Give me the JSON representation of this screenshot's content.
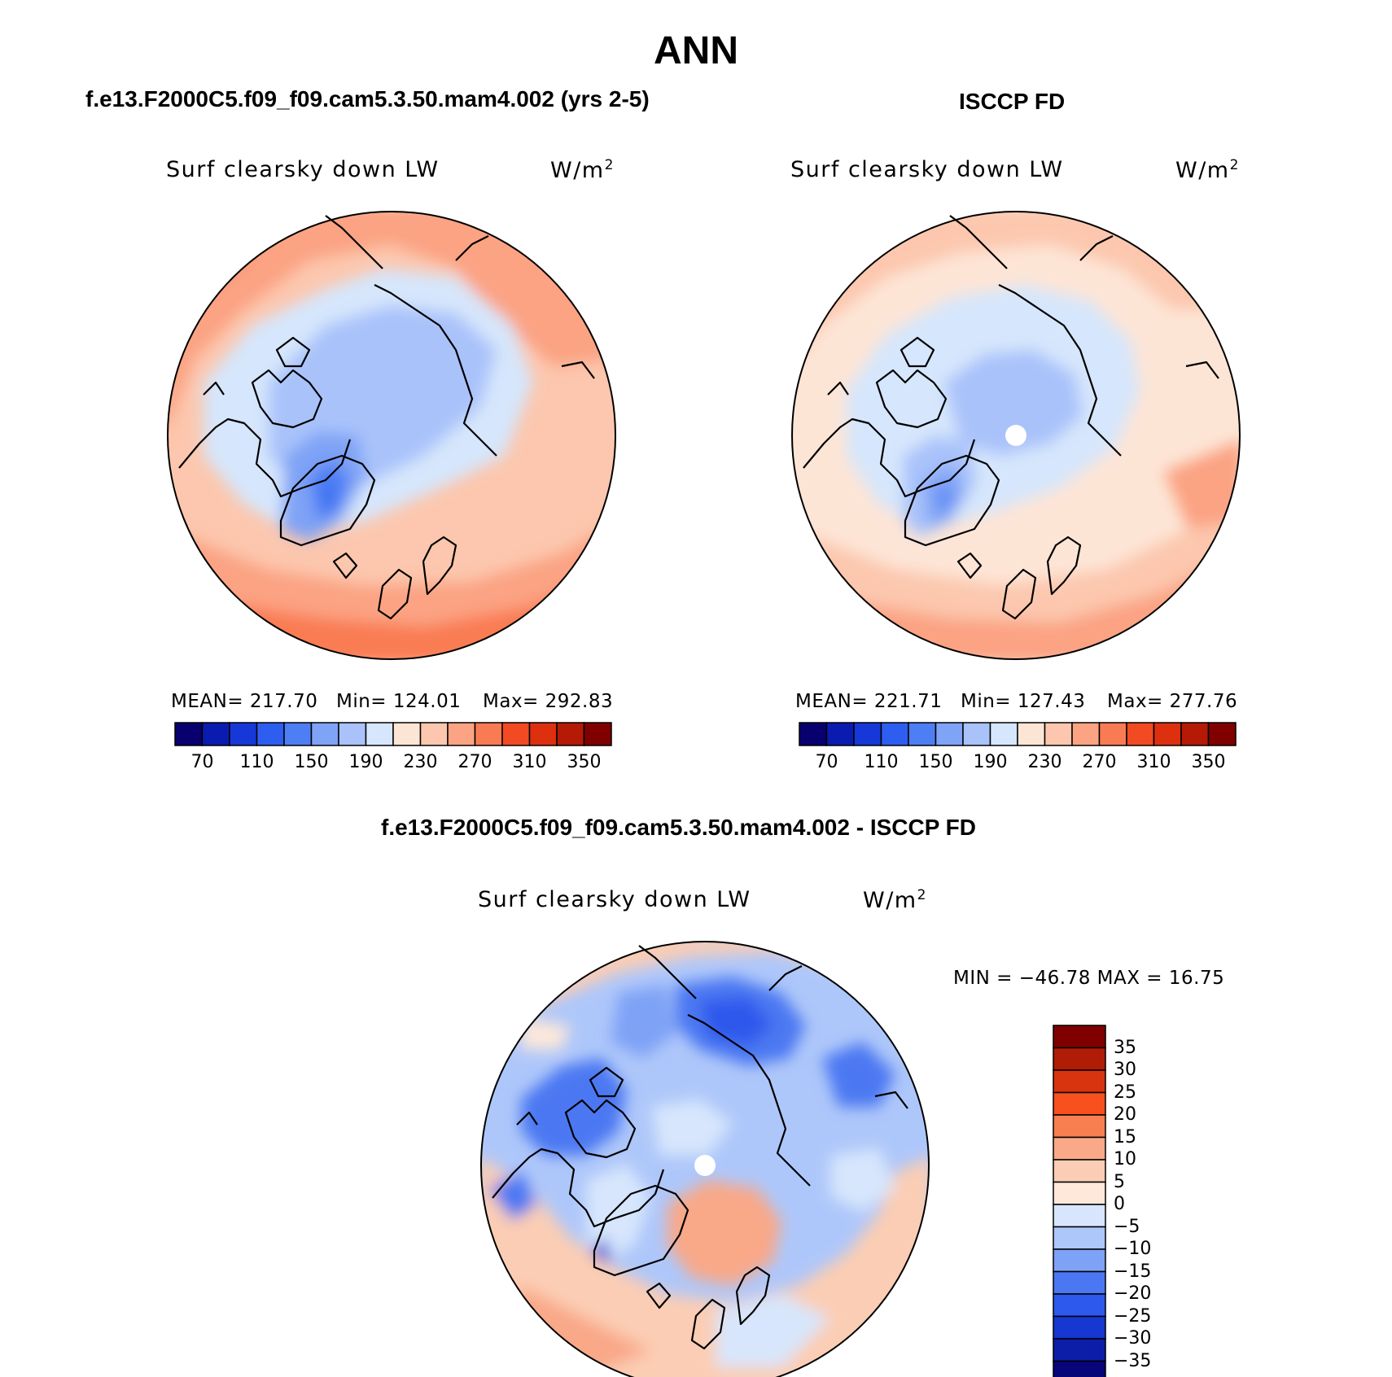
{
  "page_title": "ANN",
  "panels": [
    {
      "id": "model",
      "header": "f.e13.F2000C5.f09_f09.cam5.3.50.mam4.002 (yrs 2-5)",
      "variable": "Surf clearsky down LW",
      "units_base": "W/m",
      "units_exp": "2",
      "stats": {
        "mean": "MEAN= 217.70",
        "min": "Min= 124.01",
        "max": "Max= 292.83"
      },
      "colorbar_ticks": [
        "70",
        "110",
        "150",
        "190",
        "230",
        "270",
        "310",
        "350"
      ]
    },
    {
      "id": "obs",
      "header": "ISCCP FD",
      "variable": "Surf clearsky down LW",
      "units_base": "W/m",
      "units_exp": "2",
      "stats": {
        "mean": "MEAN= 221.71",
        "min": "Min= 127.43",
        "max": "Max= 277.76"
      },
      "colorbar_ticks": [
        "70",
        "110",
        "150",
        "190",
        "230",
        "270",
        "310",
        "350"
      ]
    }
  ],
  "difference": {
    "header": "f.e13.F2000C5.f09_f09.cam5.3.50.mam4.002 - ISCCP FD",
    "variable": "Surf clearsky down LW",
    "units_base": "W/m",
    "units_exp": "2",
    "minmax": "MIN = −46.78 MAX =  16.75",
    "colorbar_ticks": [
      "35",
      "30",
      "25",
      "20",
      "15",
      "10",
      "5",
      "0",
      "−5",
      "−10",
      "−15",
      "−20",
      "−25",
      "−30",
      "−35"
    ]
  },
  "colors": {
    "abs_palette": [
      "#08006e",
      "#0a1cb0",
      "#1638d8",
      "#2d5ef0",
      "#4d7ef4",
      "#7fa3f6",
      "#a9c2fa",
      "#d6e6fc",
      "#fde5d6",
      "#fcc7ae",
      "#fba383",
      "#f97b53",
      "#f24a22",
      "#dc300f",
      "#b41a06",
      "#800000"
    ],
    "diff_palette": [
      "#800000",
      "#b01c06",
      "#d83410",
      "#f8501e",
      "#f87f50",
      "#f9a888",
      "#fbcdb4",
      "#fde8da",
      "#d7e6fc",
      "#aec7fa",
      "#7ea2f6",
      "#4b78f2",
      "#2d59ec",
      "#1637d0",
      "#0c1ea8",
      "#08057a"
    ]
  }
}
